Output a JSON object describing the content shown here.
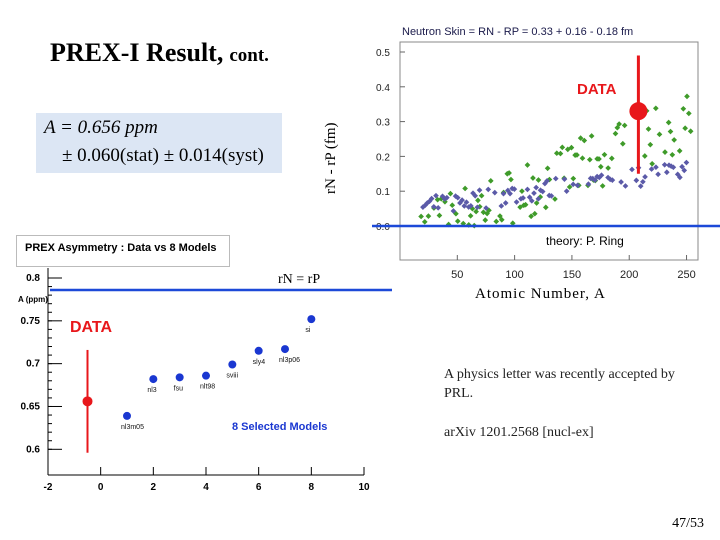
{
  "slide": {
    "title": "PREX-I  Result,",
    "title_suffix": "cont.",
    "formula_line1": "A =  0.656  ppm",
    "formula_line2": "±  0.060(stat) ± 0.014(syst)",
    "theory_label": "theory:   P. Ring",
    "rn_eq_rp_label": "rN = rP",
    "note1": "A physics letter was recently accepted by PRL.",
    "note2": "arXiv 1201.2568 [nucl-ex]",
    "page_number": "47/53",
    "colors": {
      "data_red": "#e8171b",
      "model_blue": "#1a37d1",
      "green": "#3f9b2a",
      "purple": "#5b5aa8",
      "formula_bg": "#dce6f4"
    }
  },
  "chart_data": [
    {
      "type": "scatter",
      "title": "Neutron  Skin  =  RN  -  RP  =  0.33  + 0.16  - 0.18   fm",
      "ylabel": "rN - rP   (fm)",
      "xlabel": "Atomic Number,  A",
      "xlim": [
        0,
        260
      ],
      "ylim": [
        0,
        0.5
      ],
      "x_ticks": [
        "50",
        "100",
        "150",
        "200",
        "250"
      ],
      "y_ticks": [
        "0.0",
        "0.1",
        "0.2",
        "0.3",
        "0.4",
        "0.5"
      ],
      "data_label": "DATA",
      "data_point": {
        "x": 208,
        "y": 0.33,
        "y_low": 0.15,
        "y_high": 0.49
      }
    },
    {
      "type": "scatter",
      "title": "PREX Asymmetry : Data vs 8 Models",
      "ylabel": "A (ppm)",
      "xlim": [
        -2,
        10
      ],
      "ylim": [
        0.57,
        0.8
      ],
      "x_ticks": [
        "-2",
        "0",
        "2",
        "4",
        "6",
        "8",
        "10"
      ],
      "y_ticks": [
        "0.8",
        "0.75",
        "0.7",
        "0.65",
        "0.6"
      ],
      "data_label": "DATA",
      "models_label": "8 Selected Models",
      "data_point": {
        "x": -0.5,
        "y": 0.656,
        "y_low": 0.596,
        "y_high": 0.716
      },
      "models": [
        {
          "name": "nl3m05",
          "x": 1.0,
          "y": 0.639
        },
        {
          "name": "nl3",
          "x": 2.0,
          "y": 0.682
        },
        {
          "name": "fsu",
          "x": 3.0,
          "y": 0.684
        },
        {
          "name": "nlt98",
          "x": 4.0,
          "y": 0.686
        },
        {
          "name": "sviii",
          "x": 5.0,
          "y": 0.699
        },
        {
          "name": "sly4",
          "x": 6.0,
          "y": 0.715
        },
        {
          "name": "nl3p06",
          "x": 7.0,
          "y": 0.717
        },
        {
          "name": "si",
          "x": 8.0,
          "y": 0.752
        }
      ]
    }
  ]
}
